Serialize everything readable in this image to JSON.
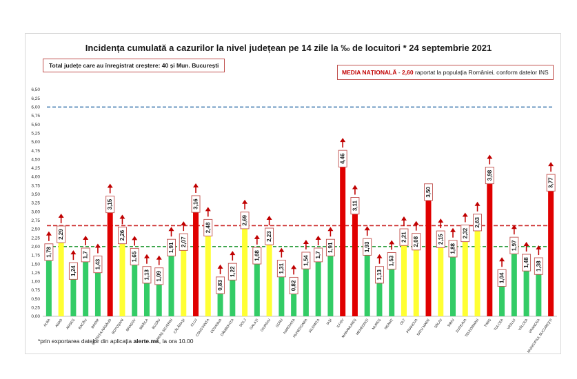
{
  "title": "Incidența cumulată a cazurilor la nivel județean pe 14 zile la ‰ de locuitori * 24 septembrie 2021",
  "total_box": "Total județe care au înregistrat creștere:  40 și Mun. București",
  "media": {
    "label": "MEDIA NAȚIONALĂ",
    "sep": " - ",
    "value": "2,60",
    "text": " raportat la populația României, conform datelor INS"
  },
  "footnote": {
    "pre": "*prin exportarea  datelor din aplicația ",
    "bold": "alerte.ms",
    "post": ", la ora 10.00"
  },
  "colors": {
    "green": "#33cc66",
    "yellow": "#ffff33",
    "red": "#e00000",
    "arrow": "#c00000",
    "green_line": "#2e9e3e",
    "red_line": "#cc2a2a",
    "blue_line": "#2f6fa8"
  },
  "chart_data": {
    "type": "bar",
    "title": "Incidența cumulată a cazurilor la nivel județean pe 14 zile la ‰ de locuitori * 24 septembrie 2021",
    "ylim": [
      0,
      6.5
    ],
    "yticks": [
      "0,00",
      "0,25",
      "0,50",
      "0,75",
      "1,00",
      "1,25",
      "1,50",
      "1,75",
      "2,00",
      "2,25",
      "2,50",
      "2,75",
      "3,00",
      "3,25",
      "3,50",
      "3,75",
      "4,00",
      "4,25",
      "4,50",
      "4,75",
      "5,00",
      "5,25",
      "5,50",
      "5,75",
      "6,00",
      "6,25",
      "6,50"
    ],
    "reference_lines": [
      {
        "value": 6.0,
        "style": "dashed",
        "color": "blue"
      },
      {
        "value": 2.6,
        "style": "dashed",
        "color": "red"
      },
      {
        "value": 2.0,
        "style": "dashed",
        "color": "green"
      }
    ],
    "categories": [
      "ALBA",
      "ARAD",
      "ARGEȘ",
      "BACĂU",
      "BIHOR",
      "BISTRIȚA-NĂSĂUD",
      "BOTOȘANI",
      "BRAȘOV",
      "BRĂILA",
      "BUZĂU",
      "CARAȘ-SEVERIN",
      "CĂLĂRAȘI",
      "CLUJ",
      "CONSTANȚA",
      "COVASNA",
      "DÂMBOVIȚA",
      "DOLJ",
      "GALAȚI",
      "GIURGIU",
      "GORJ",
      "HARGHITA",
      "HUNEDOARA",
      "IALOMIȚA",
      "IAȘI",
      "ILFOV",
      "MARAMUREȘ",
      "MEHEDINȚI",
      "MUREȘ",
      "NEAMȚ",
      "OLT",
      "PRAHOVA",
      "SATU MARE",
      "SĂLAJ",
      "SIBIU",
      "SUCEAVA",
      "TELEORMAN",
      "TIMIȘ",
      "TULCEA",
      "VASLUI",
      "VÂLCEA",
      "VRANCEA",
      "MUNICIPIUL BUCUREȘTI"
    ],
    "values": [
      1.78,
      2.29,
      1.24,
      1.7,
      1.43,
      3.15,
      2.26,
      1.65,
      1.13,
      1.09,
      1.91,
      2.07,
      3.16,
      2.48,
      0.83,
      1.22,
      2.69,
      1.68,
      2.23,
      1.31,
      0.82,
      1.54,
      1.7,
      1.91,
      4.46,
      3.11,
      1.93,
      1.13,
      1.53,
      2.21,
      2.08,
      3.5,
      2.15,
      1.88,
      2.32,
      2.63,
      3.98,
      1.04,
      1.97,
      1.48,
      1.38,
      3.77
    ],
    "labels": [
      "1,78",
      "2,29",
      "1,24",
      "1,7",
      "1,43",
      "3,15",
      "2,26",
      "1,65",
      "1,13",
      "1,09",
      "1,91",
      "2,07",
      "3,16",
      "2,48",
      "0,83",
      "1,22",
      "2,69",
      "1,68",
      "2,23",
      "1,31",
      "0,82",
      "1,54",
      "1,7",
      "1,91",
      "4,46",
      "3,11",
      "1,93",
      "1,13",
      "1,53",
      "2,21",
      "2,08",
      "3,50",
      "2,15",
      "1,88",
      "2,32",
      "2,63",
      "3,98",
      "1,04",
      "1,97",
      "1,48",
      "1,38",
      "3,77"
    ],
    "bar_colors": [
      "green",
      "yellow",
      "green",
      "green",
      "green",
      "red",
      "yellow",
      "green",
      "green",
      "green",
      "green",
      "yellow",
      "red",
      "yellow",
      "green",
      "green",
      "yellow",
      "green",
      "yellow",
      "green",
      "green",
      "green",
      "green",
      "green",
      "red",
      "red",
      "green",
      "green",
      "green",
      "yellow",
      "yellow",
      "red",
      "yellow",
      "green",
      "yellow",
      "yellow",
      "red",
      "green",
      "green",
      "green",
      "green",
      "red"
    ],
    "increase_arrow": [
      true,
      true,
      true,
      true,
      true,
      true,
      true,
      true,
      true,
      true,
      true,
      true,
      true,
      true,
      true,
      true,
      true,
      true,
      true,
      true,
      true,
      true,
      true,
      true,
      true,
      true,
      true,
      true,
      true,
      true,
      true,
      false,
      true,
      true,
      true,
      true,
      true,
      true,
      true,
      true,
      true,
      true
    ]
  }
}
